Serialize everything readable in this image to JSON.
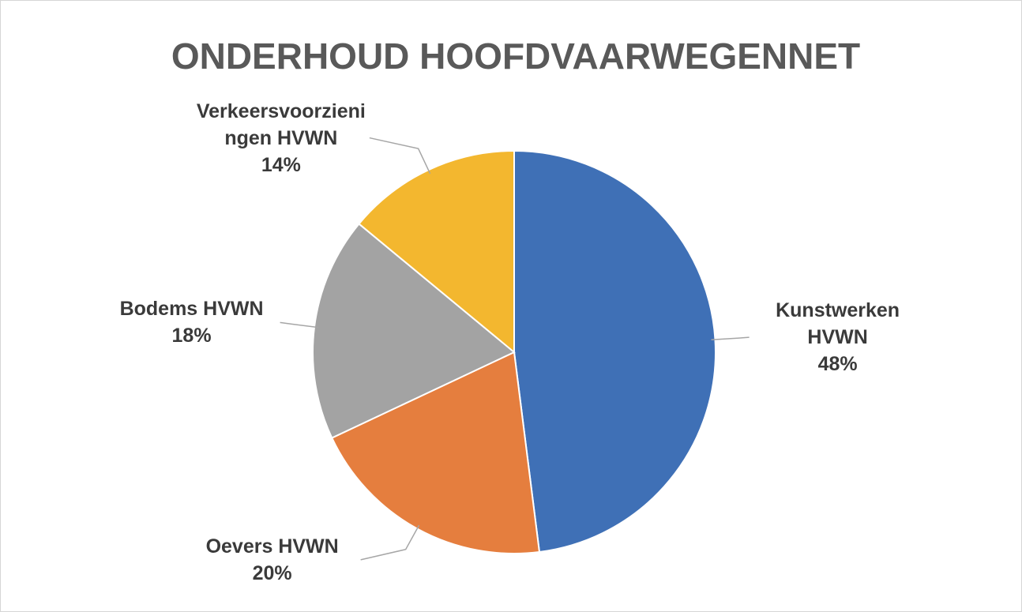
{
  "chart_data": {
    "type": "pie",
    "title": "ONDERHOUD HOOFDVAARWEGENNET",
    "categories": [
      "Kunstwerken HVWN",
      "Oevers HVWN",
      "Bodems HVWN",
      "Verkeersvoorzieningen HVWN"
    ],
    "values": [
      48,
      20,
      18,
      14
    ],
    "value_labels": [
      "48%",
      "20%",
      "18%",
      "14%"
    ],
    "colors": [
      "#3f70b6",
      "#e57e3e",
      "#a3a3a3",
      "#f3b72f"
    ]
  }
}
